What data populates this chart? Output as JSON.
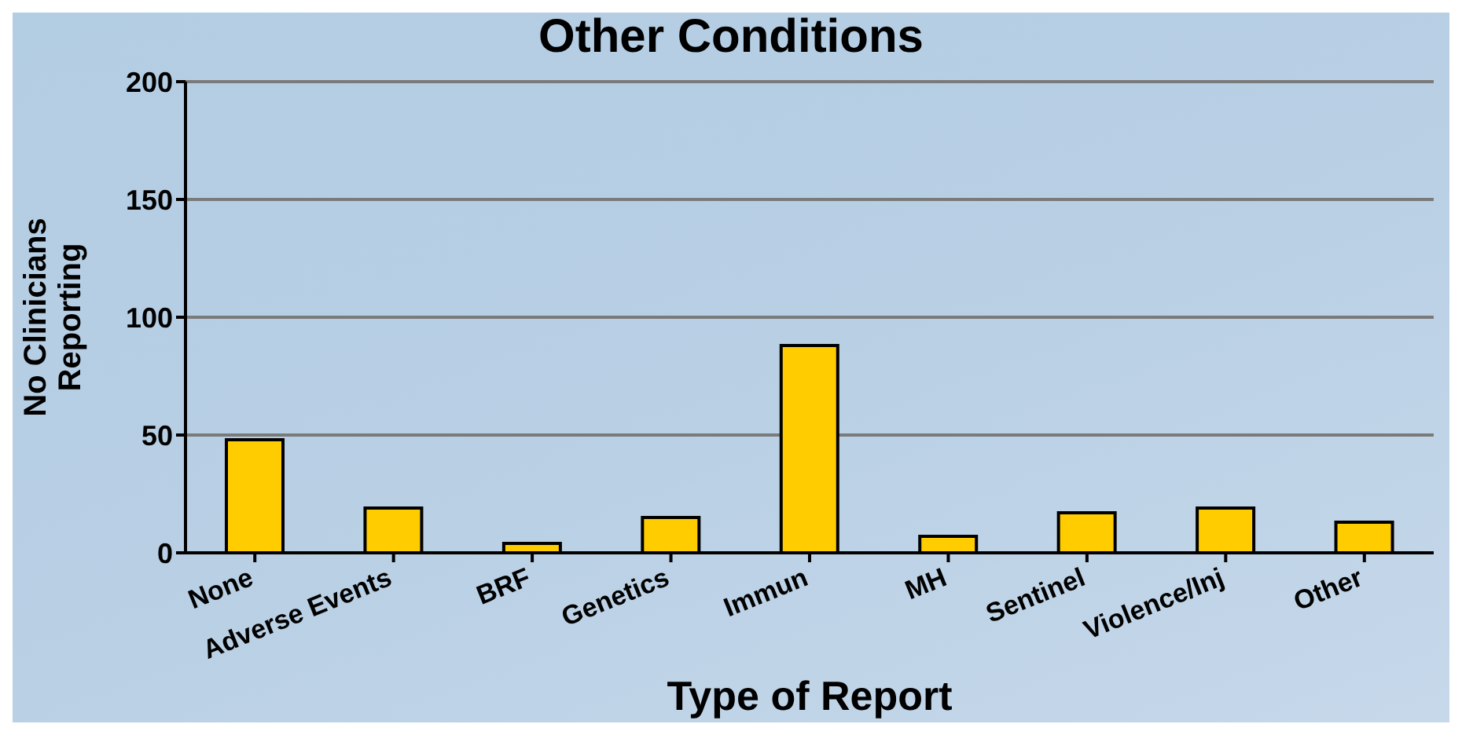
{
  "chart_data": {
    "type": "bar",
    "title": "Other Conditions",
    "xlabel": "Type of Report",
    "ylabel": "No Clinicians Reporting",
    "categories": [
      "None",
      "Adverse Events",
      "BRF",
      "Genetics",
      "Immun",
      "MH",
      "Sentinel",
      "Violence/Inj",
      "Other"
    ],
    "values": [
      48,
      19,
      4,
      15,
      88,
      7,
      17,
      19,
      13
    ],
    "color": "#ffcc00",
    "ylim": [
      0,
      200
    ],
    "yticks": [
      0,
      50,
      100,
      150,
      200
    ],
    "grid": "y"
  }
}
